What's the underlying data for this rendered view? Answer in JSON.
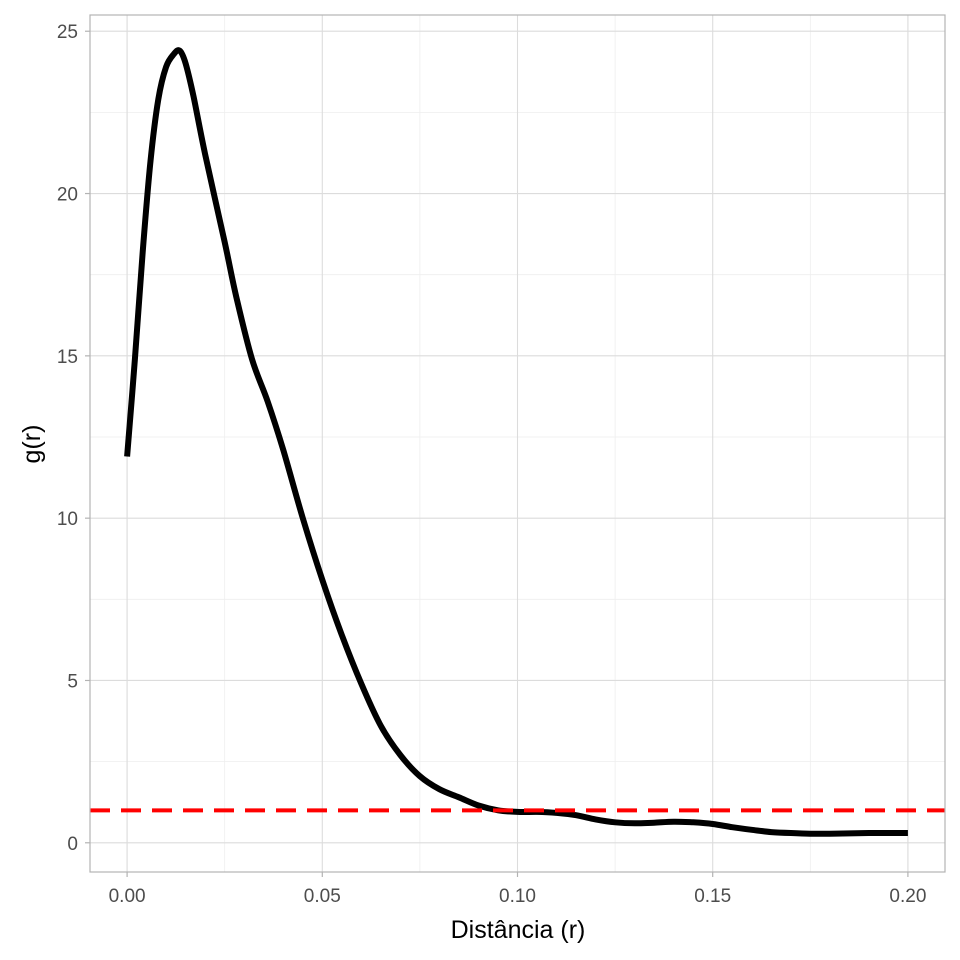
{
  "chart_data": {
    "type": "line",
    "title": "",
    "xlabel": "Distância (r)",
    "ylabel": "g(r)",
    "xlim": [
      -0.0095,
      0.2095
    ],
    "ylim": [
      -0.9,
      25.5
    ],
    "x_ticks": [
      0.0,
      0.05,
      0.1,
      0.15,
      0.2
    ],
    "x_tick_labels": [
      "0.00",
      "0.05",
      "0.10",
      "0.15",
      "0.20"
    ],
    "y_ticks": [
      0,
      5,
      10,
      15,
      20,
      25
    ],
    "y_tick_labels": [
      "0",
      "5",
      "10",
      "15",
      "20",
      "25"
    ],
    "grid": true,
    "series": [
      {
        "color": "#000000",
        "style": "solid",
        "x": [
          0.0,
          0.002,
          0.004,
          0.006,
          0.008,
          0.01,
          0.012,
          0.0135,
          0.015,
          0.017,
          0.02,
          0.025,
          0.028,
          0.032,
          0.036,
          0.04,
          0.045,
          0.05,
          0.055,
          0.06,
          0.065,
          0.07,
          0.075,
          0.08,
          0.085,
          0.09,
          0.095,
          0.1,
          0.105,
          0.11,
          0.115,
          0.12,
          0.125,
          0.13,
          0.135,
          0.14,
          0.145,
          0.15,
          0.155,
          0.16,
          0.165,
          0.17,
          0.175,
          0.18,
          0.185,
          0.19,
          0.195,
          0.2
        ],
        "y": [
          11.9,
          14.9,
          18.2,
          21.0,
          22.9,
          23.9,
          24.3,
          24.4,
          24.0,
          23.0,
          21.2,
          18.5,
          16.8,
          14.9,
          13.6,
          12.1,
          10.0,
          8.1,
          6.4,
          4.9,
          3.6,
          2.7,
          2.05,
          1.65,
          1.4,
          1.15,
          1.0,
          0.95,
          0.95,
          0.92,
          0.85,
          0.72,
          0.63,
          0.6,
          0.62,
          0.65,
          0.63,
          0.58,
          0.48,
          0.4,
          0.33,
          0.3,
          0.28,
          0.28,
          0.29,
          0.3,
          0.3,
          0.3
        ]
      },
      {
        "color": "#ff0000",
        "style": "dashed",
        "reference_y": 1
      }
    ]
  }
}
